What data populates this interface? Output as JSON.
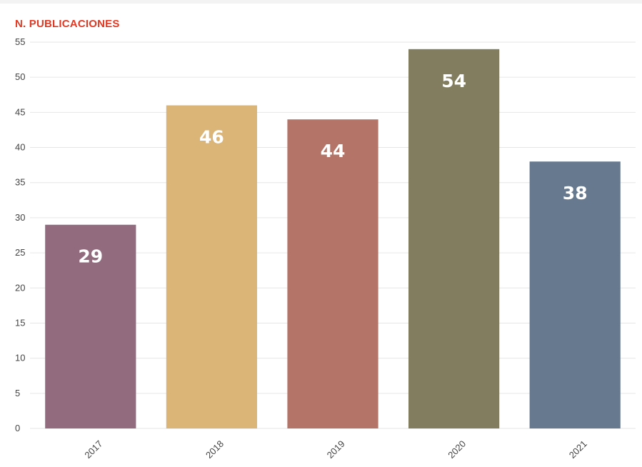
{
  "chart_data": {
    "type": "bar",
    "title": "N. PUBLICACIONES",
    "xlabel": "",
    "ylabel": "",
    "categories": [
      "2017",
      "2018",
      "2019",
      "2020",
      "2021"
    ],
    "values": [
      29,
      46,
      44,
      54,
      38
    ],
    "data_labels": [
      "29",
      "46",
      "44",
      "54",
      "38"
    ],
    "colors": [
      "#926b7e",
      "#dbb477",
      "#b57468",
      "#827d5e",
      "#66798f"
    ],
    "ylim": [
      0,
      55
    ],
    "yticks": [
      "0",
      "5",
      "10",
      "15",
      "20",
      "25",
      "30",
      "35",
      "40",
      "45",
      "50",
      "55"
    ],
    "grid": true,
    "legend": "none"
  },
  "colors": {
    "title": "#e03a24",
    "grid": "#e6e6e6",
    "tick_text": "#444444",
    "bar_label_text": "#ffffff"
  }
}
